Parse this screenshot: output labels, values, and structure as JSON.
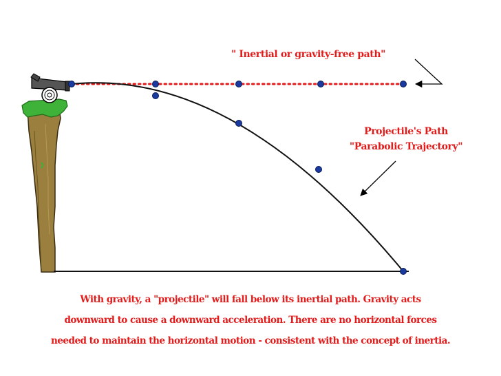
{
  "labels": {
    "inertial_path": "\" Inertial or gravity-free path\"",
    "projectile_path_line1": "Projectile's Path",
    "projectile_path_line2": "\"Parabolic Trajectory\""
  },
  "caption": {
    "line1": "With gravity, a \"projectile\" will fall below its inertial path.  Gravity acts",
    "line2": "downward to cause a downward acceleration.  There are no horizontal forces",
    "line3": "needed to maintain the horizontal motion - consistent with the concept of inertia."
  },
  "colors": {
    "text": "#e21b1b",
    "dots": "#1a3aa0",
    "inertial_line": "#e21b1b",
    "trajectory": "#111111",
    "cliff": "#9a7f3f",
    "grass": "#3fb23a",
    "cannon": "#555555"
  },
  "icons": {
    "launcher": "cannon-icon",
    "terrain": "cliff-icon"
  }
}
